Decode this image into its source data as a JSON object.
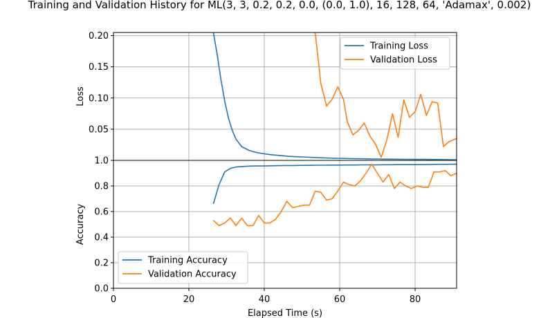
{
  "title": "Training and Validation History for ML(3, 3, 0.2, 0.2, 0.0, (0.0, 1.0), 16, 128, 64, 'Adamax', 0.002)",
  "colors": {
    "training": "#1f77b4",
    "validation": "#ff7f0e",
    "grid": "#b0b0b0"
  },
  "chart_data": [
    {
      "type": "line",
      "title": "",
      "xlabel": "",
      "ylabel": "Loss",
      "xlim": [
        0,
        91
      ],
      "ylim": [
        0,
        0.205
      ],
      "grid": true,
      "legend_position": "top-right",
      "y_ticks": [
        "0.00",
        "0.05",
        "0.10",
        "0.15",
        "0.20"
      ],
      "series": [
        {
          "name": "Training Loss",
          "color": "#1f77b4",
          "x": [
            26.5,
            27.5,
            28.5,
            29.5,
            30.5,
            31.5,
            32.5,
            34,
            36,
            38,
            40,
            42,
            44,
            46,
            48,
            50,
            52,
            54,
            56,
            58,
            60,
            62,
            64,
            66,
            68,
            70,
            72,
            74,
            76,
            78,
            80,
            82,
            84,
            86,
            88,
            90,
            91
          ],
          "y": [
            0.205,
            0.17,
            0.13,
            0.095,
            0.068,
            0.048,
            0.034,
            0.022,
            0.016,
            0.0125,
            0.0105,
            0.009,
            0.008,
            0.0068,
            0.006,
            0.0055,
            0.005,
            0.0045,
            0.004,
            0.0035,
            0.0033,
            0.003,
            0.0027,
            0.0025,
            0.0023,
            0.0022,
            0.002,
            0.0019,
            0.0018,
            0.0017,
            0.0016,
            0.0015,
            0.0014,
            0.0013,
            0.0012,
            0.0011,
            0.001
          ]
        },
        {
          "name": "Validation Loss",
          "color": "#ff7f0e",
          "x": [
            53.5,
            55,
            56.5,
            58,
            59.5,
            61,
            62,
            63.5,
            65,
            66.5,
            68,
            69.5,
            71,
            72.5,
            74,
            75.5,
            77,
            78.5,
            80,
            81.5,
            83,
            84.5,
            86,
            87.5,
            89,
            91
          ],
          "y": [
            0.205,
            0.123,
            0.087,
            0.098,
            0.118,
            0.098,
            0.062,
            0.041,
            0.048,
            0.06,
            0.039,
            0.026,
            0.005,
            0.033,
            0.075,
            0.037,
            0.097,
            0.069,
            0.078,
            0.106,
            0.072,
            0.094,
            0.092,
            0.022,
            0.03,
            0.035
          ]
        }
      ]
    },
    {
      "type": "line",
      "title": "",
      "xlabel": "Elapsed Time (s)",
      "ylabel": "Accuracy",
      "xlim": [
        0,
        91
      ],
      "ylim": [
        0,
        1.0
      ],
      "grid": true,
      "legend_position": "bottom-left",
      "y_ticks": [
        "0.0",
        "0.2",
        "0.4",
        "0.6",
        "0.8",
        "1.0"
      ],
      "x_ticks": [
        "0",
        "20",
        "40",
        "60",
        "80"
      ],
      "series": [
        {
          "name": "Training Accuracy",
          "color": "#1f77b4",
          "x": [
            26.5,
            28,
            29.5,
            31,
            32.5,
            34,
            36,
            38,
            40,
            42,
            44,
            46,
            48,
            50,
            52,
            54,
            56,
            58,
            60,
            62,
            64,
            66,
            68,
            70,
            72,
            74,
            76,
            78,
            80,
            82,
            84,
            86,
            88,
            90,
            91
          ],
          "y": [
            0.66,
            0.81,
            0.91,
            0.938,
            0.948,
            0.952,
            0.955,
            0.957,
            0.956,
            0.958,
            0.959,
            0.96,
            0.96,
            0.961,
            0.961,
            0.962,
            0.962,
            0.963,
            0.963,
            0.964,
            0.964,
            0.965,
            0.965,
            0.965,
            0.966,
            0.966,
            0.967,
            0.967,
            0.967,
            0.968,
            0.968,
            0.969,
            0.969,
            0.97,
            0.97
          ]
        },
        {
          "name": "Validation Accuracy",
          "color": "#ff7f0e",
          "x": [
            26.5,
            28,
            29.5,
            31,
            32.5,
            34,
            35.5,
            37,
            38.5,
            40,
            41.5,
            43,
            44.5,
            46,
            47.5,
            49,
            50.5,
            52,
            53.5,
            55,
            56.5,
            58,
            59.5,
            61,
            62.5,
            64,
            65.5,
            67,
            68.5,
            70,
            71.5,
            73,
            74.5,
            76,
            77.5,
            79,
            80.5,
            82,
            83.5,
            85,
            86.5,
            88,
            89.5,
            91
          ],
          "y": [
            0.53,
            0.49,
            0.51,
            0.55,
            0.49,
            0.55,
            0.49,
            0.49,
            0.57,
            0.51,
            0.51,
            0.54,
            0.6,
            0.68,
            0.63,
            0.64,
            0.65,
            0.65,
            0.76,
            0.75,
            0.69,
            0.7,
            0.76,
            0.83,
            0.81,
            0.8,
            0.84,
            0.9,
            0.97,
            0.9,
            0.83,
            0.89,
            0.78,
            0.83,
            0.8,
            0.78,
            0.8,
            0.79,
            0.79,
            0.91,
            0.91,
            0.92,
            0.88,
            0.9
          ]
        }
      ]
    }
  ]
}
